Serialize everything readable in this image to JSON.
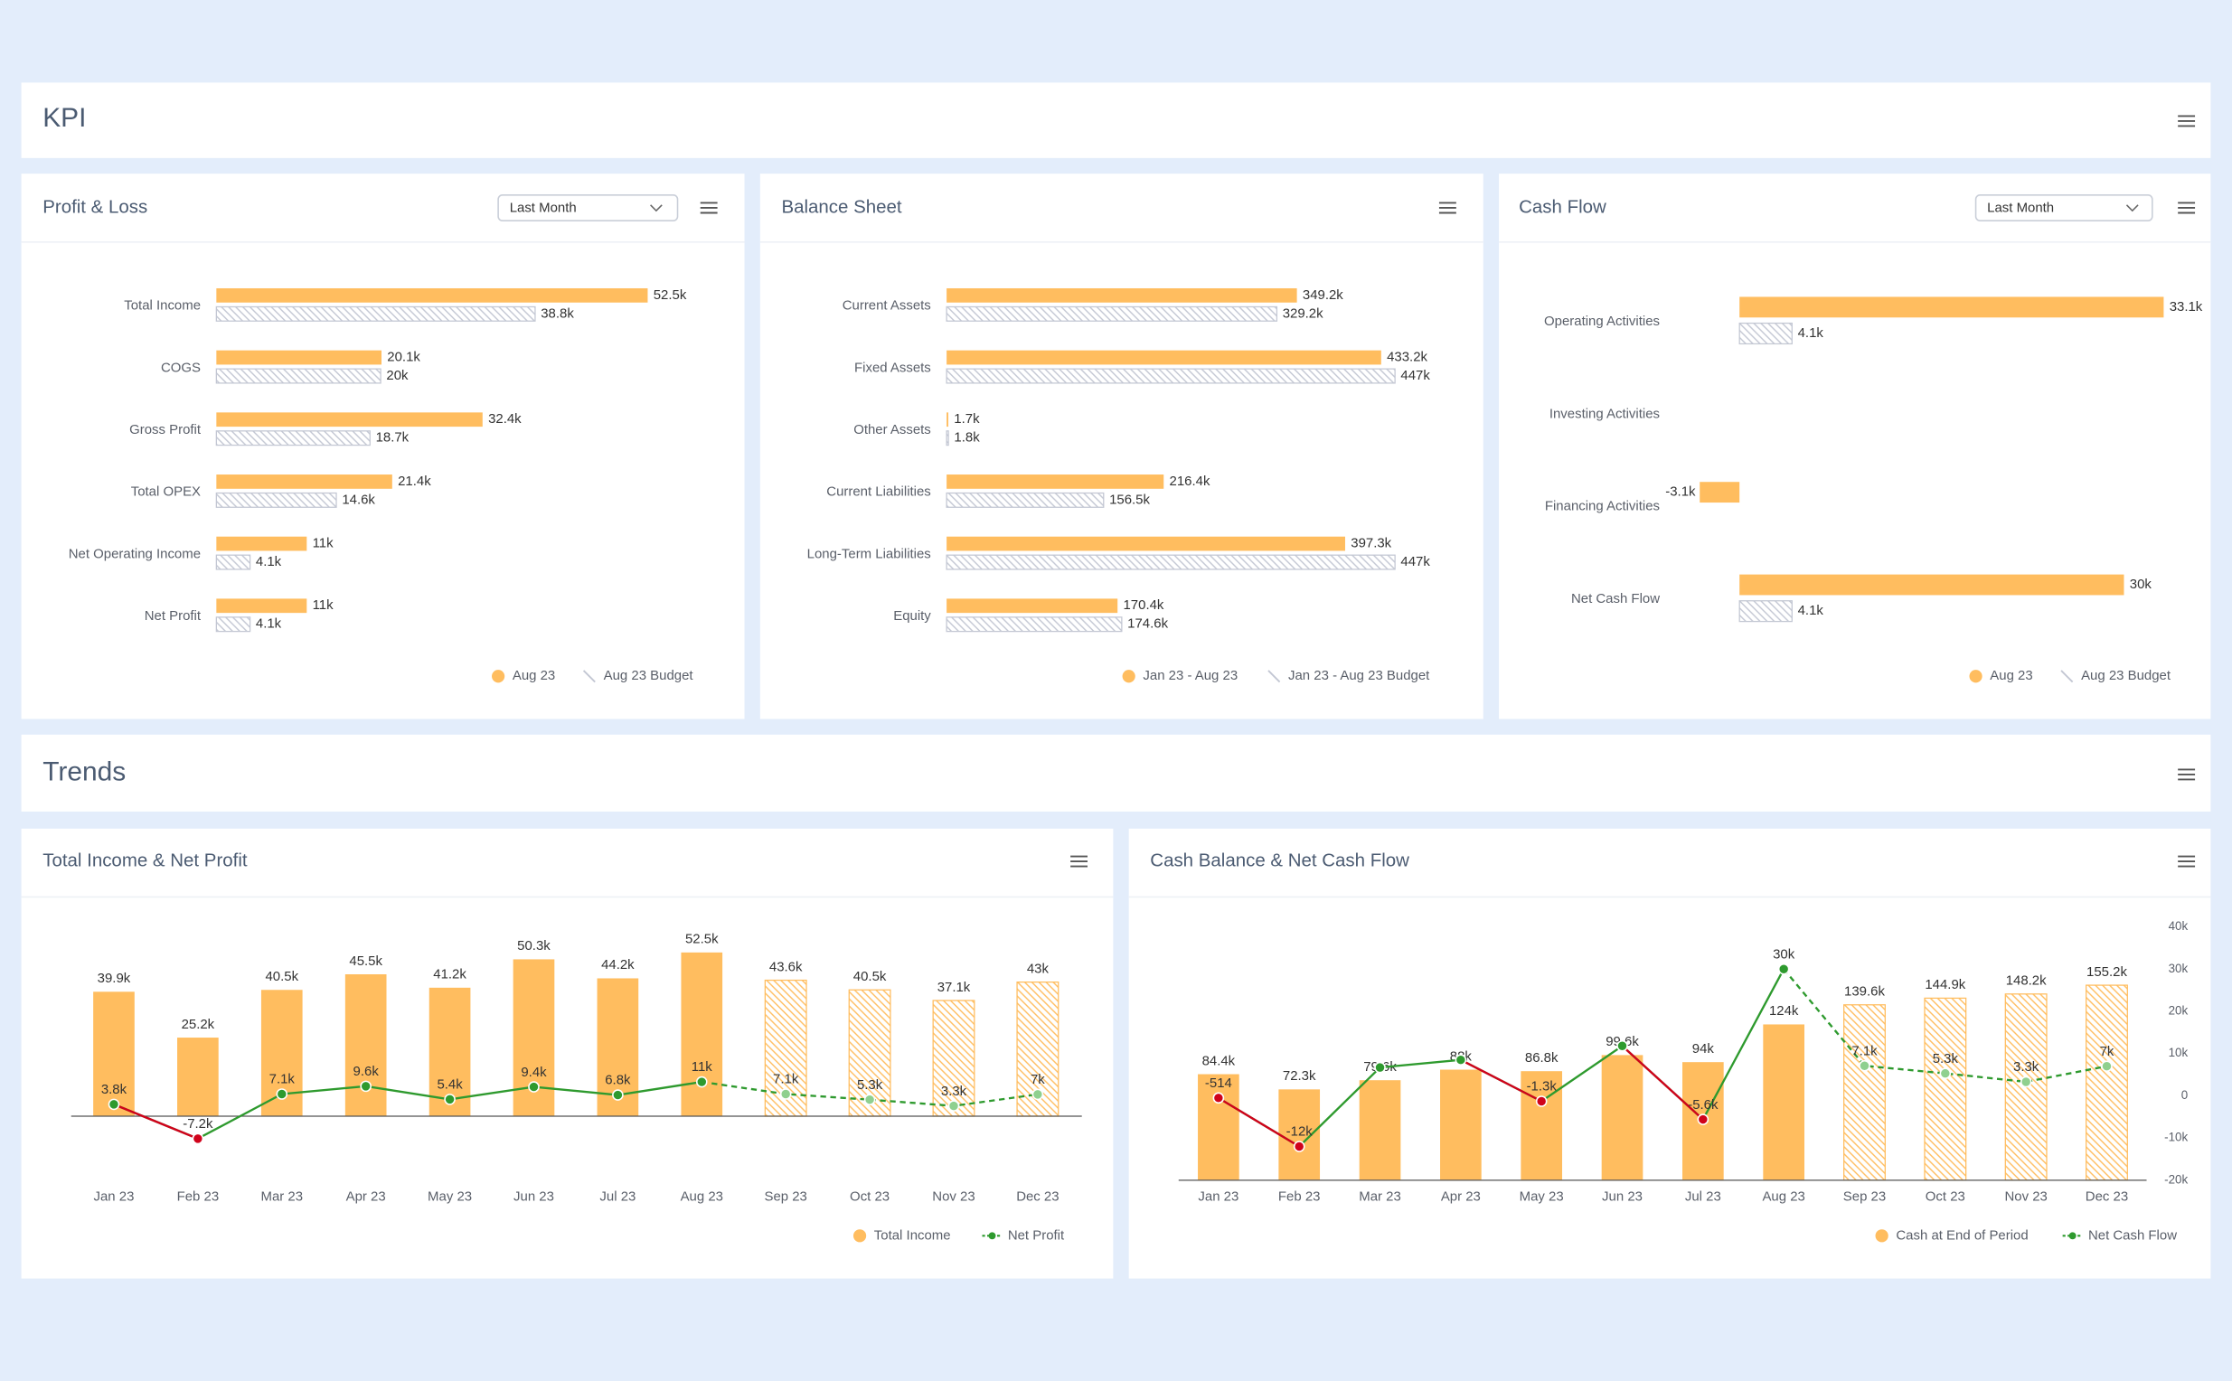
{
  "sections": [
    "KPI",
    "Trends"
  ],
  "chart_data": [
    {
      "type": "hbar",
      "title": "Profit & Loss",
      "filter": "Last Month",
      "categories": [
        "Total Income",
        "COGS",
        "Gross Profit",
        "Total OPEX",
        "Net Operating Income",
        "Net Profit"
      ],
      "series": [
        {
          "name": "Aug 23",
          "color": "#ffbd5f",
          "values": [
            52500,
            20100,
            32400,
            21400,
            11000,
            11000
          ],
          "value_labels": [
            "52.5k",
            "20.1k",
            "32.4k",
            "21.4k",
            "11k",
            "11k"
          ]
        },
        {
          "name": "Aug 23 Budget",
          "color": "#c3c7d3",
          "hatched": true,
          "values": [
            38800,
            20000,
            18700,
            14600,
            4100,
            4100
          ],
          "value_labels": [
            "38.8k",
            "20k",
            "18.7k",
            "14.6k",
            "4.1k",
            "4.1k"
          ]
        }
      ]
    },
    {
      "type": "hbar",
      "title": "Balance Sheet",
      "categories": [
        "Current Assets",
        "Fixed Assets",
        "Other Assets",
        "Current Liabilities",
        "Long-Term Liabilities",
        "Equity"
      ],
      "series": [
        {
          "name": "Jan 23 - Aug 23",
          "color": "#ffbd5f",
          "values": [
            349200,
            433200,
            1700,
            216400,
            397300,
            170400
          ],
          "value_labels": [
            "349.2k",
            "433.2k",
            "1.7k",
            "216.4k",
            "397.3k",
            "170.4k"
          ]
        },
        {
          "name": "Jan 23 - Aug 23 Budget",
          "color": "#c3c7d3",
          "hatched": true,
          "values": [
            329200,
            447000,
            1800,
            156500,
            447000,
            174600
          ],
          "value_labels": [
            "329.2k",
            "447k",
            "1.8k",
            "156.5k",
            "447k",
            "174.6k"
          ]
        }
      ]
    },
    {
      "type": "hbar",
      "title": "Cash Flow",
      "filter": "Last Month",
      "categories": [
        "Operating Activities",
        "Investing Activities",
        "Financing Activities",
        "Net Cash Flow"
      ],
      "series": [
        {
          "name": "Aug 23",
          "color": "#ffbd5f",
          "values": [
            33100,
            null,
            -3100,
            30000
          ],
          "value_labels": [
            "33.1k",
            null,
            "-3.1k",
            "30k"
          ]
        },
        {
          "name": "Aug 23 Budget",
          "color": "#c3c7d3",
          "hatched": true,
          "values": [
            4100,
            null,
            null,
            4100
          ],
          "value_labels": [
            "4.1k",
            null,
            null,
            "4.1k"
          ]
        }
      ]
    },
    {
      "type": "combo",
      "title": "Total Income & Net Profit",
      "categories": [
        "Jan 23",
        "Feb 23",
        "Mar 23",
        "Apr 23",
        "May 23",
        "Jun 23",
        "Jul 23",
        "Aug 23",
        "Sep 23",
        "Oct 23",
        "Nov 23",
        "Dec 23"
      ],
      "forecast": [
        false,
        false,
        false,
        false,
        false,
        false,
        false,
        false,
        true,
        true,
        true,
        true
      ],
      "series": [
        {
          "name": "Total Income",
          "color": "#ffbd5f",
          "values": [
            39900,
            25200,
            40500,
            45500,
            41200,
            50300,
            44200,
            52500,
            43600,
            40500,
            37100,
            43000
          ],
          "value_labels": [
            "39.9k",
            "25.2k",
            "40.5k",
            "45.5k",
            "41.2k",
            "50.3k",
            "44.2k",
            "52.5k",
            "43.6k",
            "40.5k",
            "37.1k",
            "43k"
          ]
        },
        {
          "name": "Net Profit",
          "color": "#2e9a2e",
          "negative_color": "#d0021b",
          "values": [
            3800,
            -7200,
            7100,
            9600,
            5400,
            9400,
            6800,
            11000,
            7100,
            5300,
            3300,
            7000
          ],
          "value_labels": [
            "3.8k",
            "-7.2k",
            "7.1k",
            "9.6k",
            "5.4k",
            "9.4k",
            "6.8k",
            "11k",
            "7.1k",
            "5.3k",
            "3.3k",
            "7k"
          ]
        }
      ]
    },
    {
      "type": "combo",
      "title": "Cash Balance & Net Cash Flow",
      "categories": [
        "Jan 23",
        "Feb 23",
        "Mar 23",
        "Apr 23",
        "May 23",
        "Jun 23",
        "Jul 23",
        "Aug 23",
        "Sep 23",
        "Oct 23",
        "Nov 23",
        "Dec 23"
      ],
      "forecast": [
        false,
        false,
        false,
        false,
        false,
        false,
        false,
        false,
        true,
        true,
        true,
        true
      ],
      "y2lim": [
        -20000,
        40000
      ],
      "y2ticks": [
        {
          "value": 40000,
          "label": "40k"
        },
        {
          "value": 30000,
          "label": "30k"
        },
        {
          "value": 20000,
          "label": "20k"
        },
        {
          "value": 10000,
          "label": "10k"
        },
        0,
        {
          "value": -10000,
          "label": "-10k"
        },
        {
          "value": -20000,
          "label": "-20k"
        }
      ],
      "series": [
        {
          "name": "Cash at End of Period",
          "color": "#ffbd5f",
          "values": [
            84400,
            72300,
            79600,
            88000,
            86800,
            99600,
            94000,
            124000,
            139600,
            144900,
            148200,
            155200
          ],
          "value_labels": [
            "84.4k",
            "72.3k",
            "79.6k",
            "88k",
            "86.8k",
            "99.6k",
            "94k",
            "124k",
            "139.6k",
            "144.9k",
            "148.2k",
            "155.2k"
          ]
        },
        {
          "name": "Net Cash Flow",
          "color": "#2e9a2e",
          "negative_color": "#d0021b",
          "axis": "y2",
          "values": [
            -514,
            -12000,
            6700,
            8500,
            -1300,
            11800,
            -5600,
            30000,
            7100,
            5300,
            3300,
            7000
          ],
          "value_labels": [
            "-514",
            "-12k",
            null,
            null,
            "-1.3k",
            null,
            "-5.6k",
            "30k",
            "7.1k",
            "5.3k",
            "3.3k",
            "7k"
          ]
        }
      ]
    }
  ]
}
